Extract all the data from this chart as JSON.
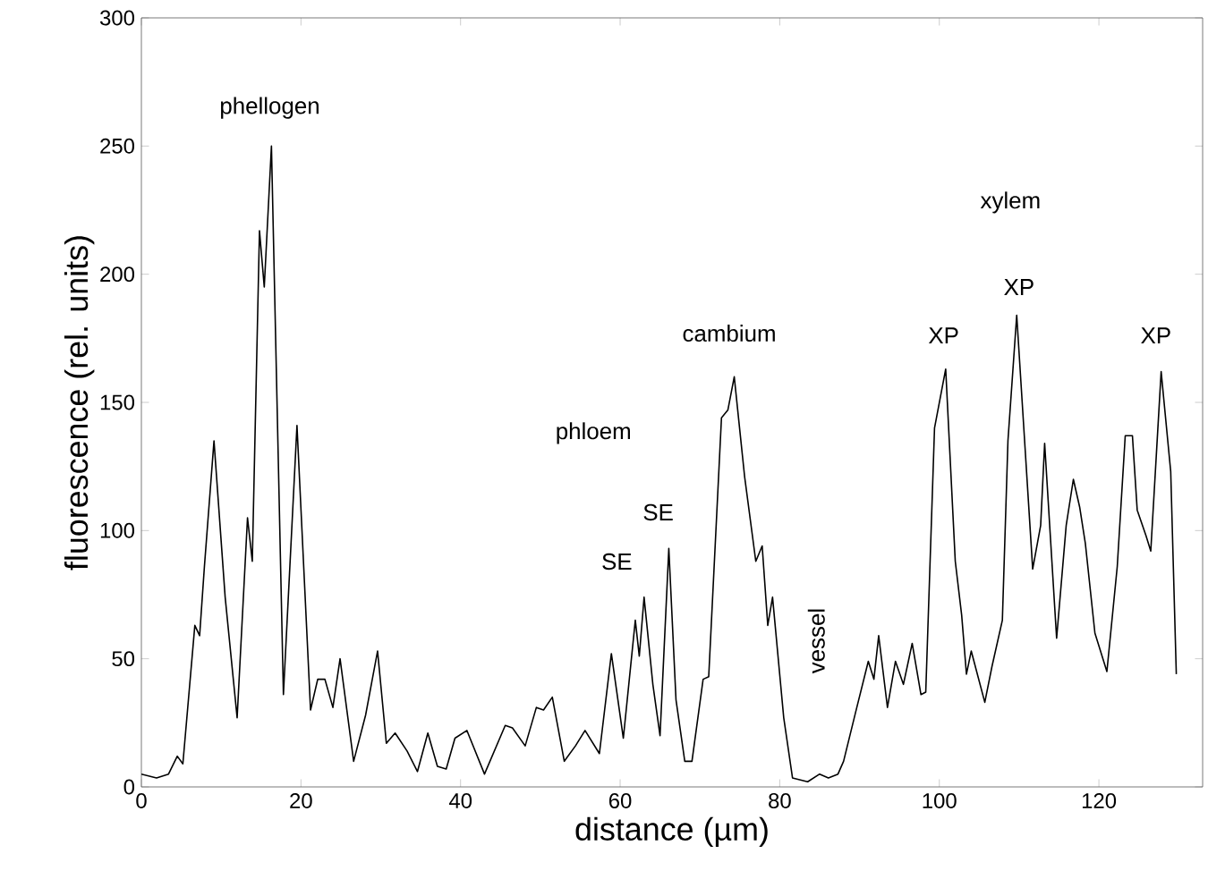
{
  "chart_data": {
    "type": "line",
    "xlabel": "distance (µm)",
    "ylabel": "fluorescence (rel. units)",
    "xlim": [
      0,
      133
    ],
    "ylim": [
      0,
      300
    ],
    "xticks": [
      0,
      20,
      40,
      60,
      80,
      100,
      120
    ],
    "yticks": [
      0,
      50,
      100,
      150,
      200,
      250,
      300
    ],
    "x": [
      0,
      1.9,
      3.4,
      4.5,
      5.2,
      6.7,
      7.3,
      7.9,
      9.1,
      10.5,
      12,
      13.3,
      13.9,
      14.8,
      15.4,
      16.3,
      17.8,
      19.5,
      21.2,
      22.1,
      23,
      24,
      24.9,
      26.6,
      28.1,
      29.6,
      30.7,
      31.8,
      33.3,
      34.6,
      35.9,
      37.1,
      38.2,
      39.3,
      40.8,
      43,
      45.6,
      46.5,
      48.1,
      49.5,
      50.4,
      51.5,
      53,
      54.4,
      55.6,
      57.4,
      58.9,
      60.4,
      61.9,
      62.4,
      63,
      64.1,
      65,
      66.1,
      67,
      68.1,
      69,
      70.4,
      71.1,
      72.7,
      73.5,
      74.3,
      75.6,
      77,
      77.8,
      78.5,
      79.1,
      80.5,
      81.6,
      83.5,
      85,
      86.1,
      87.3,
      88,
      89.5,
      91.1,
      91.8,
      92.4,
      93.5,
      94.5,
      95.5,
      96.6,
      97.7,
      98.3,
      99.4,
      100.8,
      102,
      102.8,
      103.4,
      104,
      105.7,
      106.6,
      107.9,
      108.6,
      109.7,
      111.7,
      112.7,
      113.2,
      114.7,
      115.9,
      116.8,
      117.6,
      118.3,
      119.5,
      121,
      122.3,
      123.3,
      124.2,
      124.8,
      125.9,
      126.5,
      127.8,
      129,
      129.7
    ],
    "series": [
      {
        "color": "#000000",
        "values": [
          5,
          3.5,
          5,
          12,
          9,
          63,
          59,
          86,
          135,
          74,
          27,
          105,
          88,
          217,
          195,
          250,
          36,
          141,
          30,
          42,
          42,
          31,
          50,
          10,
          28,
          53,
          17,
          21,
          14,
          6,
          21,
          8,
          7,
          19,
          22,
          5,
          24,
          23,
          16,
          31,
          30,
          35,
          10,
          16,
          22,
          13,
          52,
          19,
          65,
          51,
          74,
          40,
          20,
          93,
          34,
          10,
          10,
          42,
          43,
          144,
          147,
          160,
          121,
          88,
          94,
          63,
          74,
          27,
          3.5,
          2,
          5,
          3.5,
          5,
          10,
          29,
          49,
          42,
          59,
          31,
          49,
          40,
          56,
          36,
          37,
          140,
          163,
          88,
          67,
          44,
          53,
          33,
          47,
          65,
          135,
          184,
          85,
          102,
          134,
          58,
          102,
          120,
          109,
          95,
          60,
          45,
          86,
          137,
          137,
          108,
          98,
          92,
          162,
          123,
          44
        ]
      }
    ],
    "annotations": [
      "phellogen",
      "phloem",
      "SE",
      "SE",
      "cambium",
      "vessel",
      "xylem",
      "XP",
      "XP",
      "XP"
    ]
  }
}
